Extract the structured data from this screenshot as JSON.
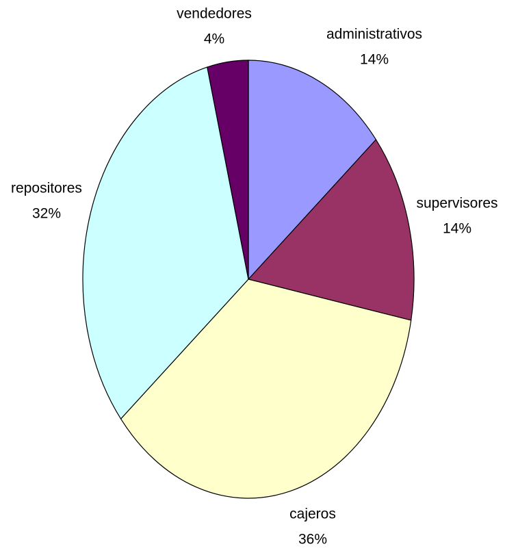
{
  "chart_data": {
    "type": "pie",
    "categories": [
      "administrativos",
      "supervisores",
      "cajeros",
      "repositores",
      "vendedores"
    ],
    "values": [
      14,
      14,
      36,
      32,
      4
    ],
    "value_labels": [
      "14%",
      "14%",
      "36%",
      "32%",
      "4%"
    ],
    "colors": [
      "#9999ff",
      "#993366",
      "#ffffcc",
      "#ccffff",
      "#660066"
    ]
  }
}
